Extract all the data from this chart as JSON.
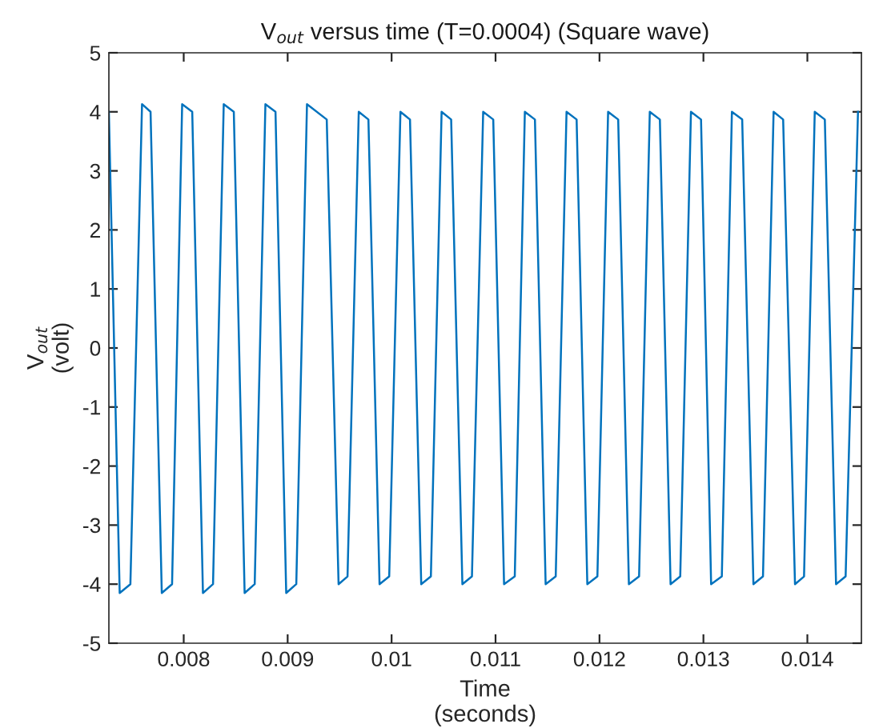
{
  "chart_data": {
    "type": "line",
    "title": "V$_{out}$ versus time (T=0.0004) (Square wave)",
    "xlabel": "Time\n(seconds)",
    "ylabel": "V$_{out}$\n(volt)",
    "xlim": [
      0.00728,
      0.01452
    ],
    "ylim": [
      -5,
      5
    ],
    "xticks": [
      0.008,
      0.009,
      0.01,
      0.011,
      0.012,
      0.013,
      0.014
    ],
    "yticks": [
      -5,
      -4,
      -3,
      -2,
      -1,
      0,
      1,
      2,
      3,
      4,
      5
    ],
    "marker": "none",
    "line_style": "solid",
    "series": [
      {
        "color": "#0072bd",
        "x": [
          0.00728,
          0.007384,
          0.007487,
          0.007599,
          0.007681,
          0.007789,
          0.007888,
          0.007985,
          0.008082,
          0.008185,
          0.008282,
          0.008385,
          0.008482,
          0.008586,
          0.008683,
          0.008786,
          0.008883,
          0.008986,
          0.009083,
          0.009186,
          0.009376,
          0.00949,
          0.009576,
          0.009684,
          0.009777,
          0.009884,
          0.009977,
          0.010085,
          0.010177,
          0.010285,
          0.010378,
          0.010481,
          0.010573,
          0.010681,
          0.010773,
          0.010881,
          0.010978,
          0.011082,
          0.011185,
          0.011282,
          0.011379,
          0.011482,
          0.011579,
          0.011683,
          0.01178,
          0.011883,
          0.01198,
          0.012083,
          0.01218,
          0.012283,
          0.012381,
          0.012484,
          0.012581,
          0.012684,
          0.012777,
          0.01288,
          0.012977,
          0.013074,
          0.013177,
          0.013274,
          0.013373,
          0.013481,
          0.013573,
          0.013675,
          0.013767,
          0.013881,
          0.013968,
          0.014071,
          0.014168,
          0.014276,
          0.014368,
          0.014487
        ],
        "values": [
          4.0,
          -4.15,
          -4.0,
          4.13,
          4.0,
          -4.15,
          -4.0,
          4.13,
          4.0,
          -4.15,
          -4.0,
          4.13,
          4.0,
          -4.15,
          -4.0,
          4.13,
          4.0,
          -4.15,
          -4.0,
          4.13,
          3.87,
          -4.0,
          -3.87,
          4.0,
          3.87,
          -4.0,
          -3.87,
          4.0,
          3.87,
          -4.0,
          -3.87,
          4.0,
          3.87,
          -4.0,
          -3.87,
          4.0,
          3.87,
          -4.0,
          -3.87,
          4.0,
          3.87,
          -4.0,
          -3.87,
          4.0,
          3.87,
          -4.0,
          -3.87,
          4.0,
          3.87,
          -4.0,
          -3.87,
          4.0,
          3.87,
          -4.0,
          -3.87,
          4.0,
          3.87,
          -4.0,
          -3.87,
          4.0,
          3.87,
          -4.0,
          -3.87,
          4.0,
          3.87,
          -4.0,
          -3.87,
          4.0,
          3.87,
          -4.0,
          -3.87,
          4.0
        ]
      }
    ]
  }
}
